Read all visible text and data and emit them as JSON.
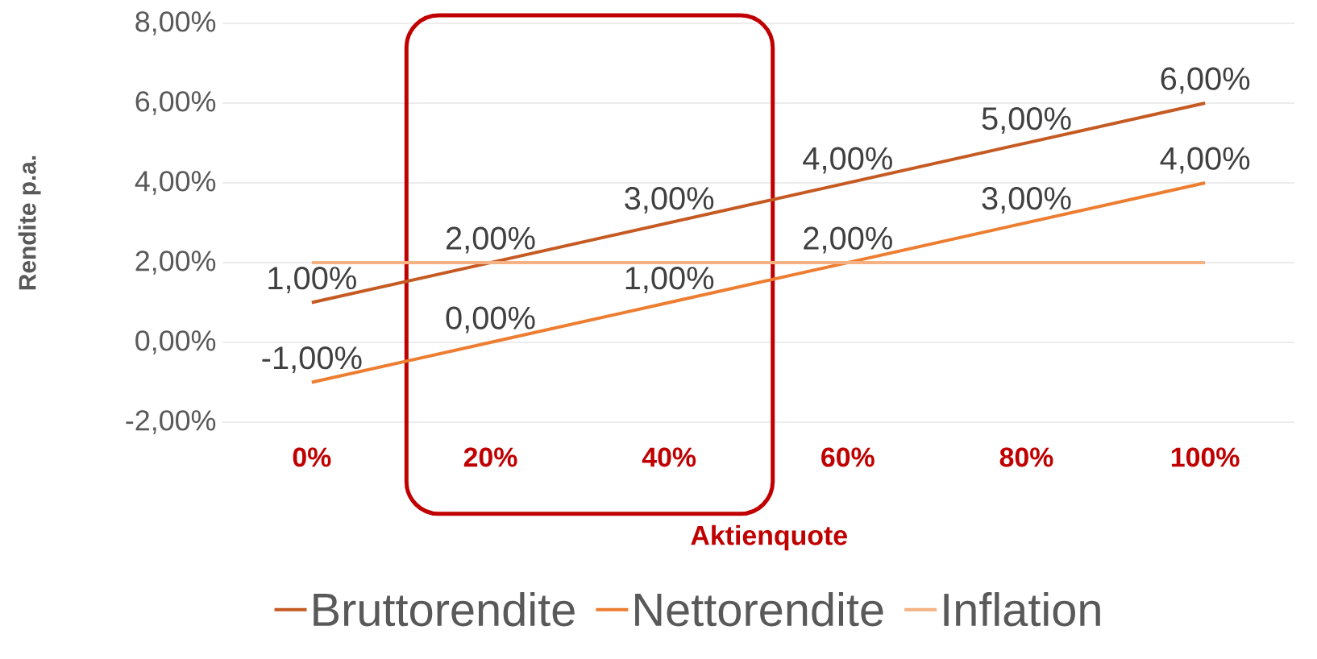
{
  "chart_data": {
    "type": "line",
    "xlabel": "Aktienquote",
    "ylabel": "Rendite p.a.",
    "categories": [
      "0%",
      "20%",
      "40%",
      "60%",
      "80%",
      "100%"
    ],
    "series": [
      {
        "name": "Bruttorendite",
        "color": "#c55a22",
        "values": [
          1,
          2,
          3,
          4,
          5,
          6
        ],
        "value_labels": [
          "1,00%",
          "2,00%",
          "3,00%",
          "4,00%",
          "5,00%",
          "6,00%"
        ]
      },
      {
        "name": "Nettorendite",
        "color": "#ed7d31",
        "values": [
          -1,
          0,
          1,
          2,
          3,
          4
        ],
        "value_labels": [
          "-1,00%",
          "0,00%",
          "1,00%",
          "2,00%",
          "3,00%",
          "4,00%"
        ]
      },
      {
        "name": "Inflation",
        "color": "#f4b183",
        "values": [
          2,
          2,
          2,
          2,
          2,
          2
        ]
      }
    ],
    "ylim": [
      -2,
      8
    ],
    "yticks": [
      {
        "value": -2,
        "label": "-2,00%"
      },
      {
        "value": 0,
        "label": "0,00%"
      },
      {
        "value": 2,
        "label": "2,00%"
      },
      {
        "value": 4,
        "label": "4,00%"
      },
      {
        "value": 6,
        "label": "6,00%"
      },
      {
        "value": 8,
        "label": "8,00%"
      }
    ],
    "grid": "y",
    "legend": "bottom",
    "marker": "none",
    "line_style": "solid"
  }
}
